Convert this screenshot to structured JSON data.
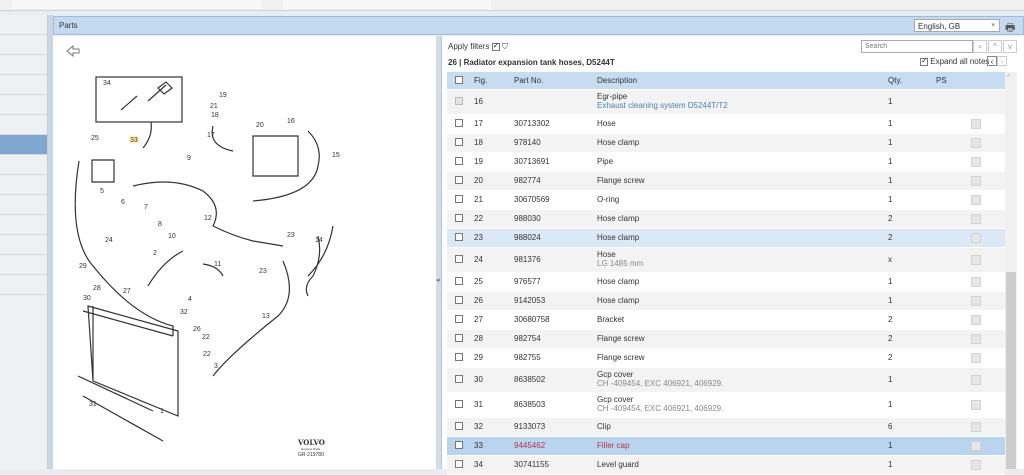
{
  "header": {
    "title": "Parts",
    "language": "English, GB"
  },
  "filters": {
    "apply_label": "Apply filters",
    "apply_checked": true
  },
  "search": {
    "placeholder": "Search"
  },
  "section": {
    "title": "26  |  Radiator expansion tank hoses, D5244T"
  },
  "expand_notes": {
    "label": "Expand all notes",
    "checked": true
  },
  "table": {
    "columns": {
      "fig": "Fig.",
      "part_no": "Part No.",
      "description": "Description",
      "qty": "Qty.",
      "ps": "PS"
    },
    "rows": [
      {
        "fig": "16",
        "part_no": "",
        "description": "Egr-pipe",
        "note": "Exhaust cleaning system D5244T/T2",
        "note_link": true,
        "qty": "1",
        "disabled": true
      },
      {
        "fig": "17",
        "part_no": "30713302",
        "description": "Hose",
        "note": "",
        "qty": "1"
      },
      {
        "fig": "18",
        "part_no": "978140",
        "description": "Hose clamp",
        "note": "",
        "qty": "1"
      },
      {
        "fig": "19",
        "part_no": "30713691",
        "description": "Pipe",
        "note": "",
        "qty": "1"
      },
      {
        "fig": "20",
        "part_no": "982774",
        "description": "Flange screw",
        "note": "",
        "qty": "1"
      },
      {
        "fig": "21",
        "part_no": "30670569",
        "description": "O-ring",
        "note": "",
        "qty": "1"
      },
      {
        "fig": "22",
        "part_no": "988030",
        "description": "Hose clamp",
        "note": "",
        "qty": "2"
      },
      {
        "fig": "23",
        "part_no": "988024",
        "description": "Hose clamp",
        "note": "",
        "qty": "2",
        "state": "hover"
      },
      {
        "fig": "24",
        "part_no": "981376",
        "description": "Hose",
        "note": "LG 1485 mm",
        "qty": "x"
      },
      {
        "fig": "25",
        "part_no": "976577",
        "description": "Hose clamp",
        "note": "",
        "qty": "1"
      },
      {
        "fig": "26",
        "part_no": "9142053",
        "description": "Hose clamp",
        "note": "",
        "qty": "1"
      },
      {
        "fig": "27",
        "part_no": "30680758",
        "description": "Bracket",
        "note": "",
        "qty": "2"
      },
      {
        "fig": "28",
        "part_no": "982754",
        "description": "Flange screw",
        "note": "",
        "qty": "2"
      },
      {
        "fig": "29",
        "part_no": "982755",
        "description": "Flange screw",
        "note": "",
        "qty": "2"
      },
      {
        "fig": "30",
        "part_no": "8638502",
        "description": "Gcp cover",
        "note": "CH -409454, EXC 406921, 406929.",
        "qty": "1"
      },
      {
        "fig": "31",
        "part_no": "8638503",
        "description": "Gcp cover",
        "note": "CH -409454, EXC 406921, 406929.",
        "qty": "1"
      },
      {
        "fig": "32",
        "part_no": "9133073",
        "description": "Clip",
        "note": "",
        "qty": "6"
      },
      {
        "fig": "33",
        "part_no": "9445462",
        "description": "Filler cap",
        "note": "",
        "qty": "1",
        "state": "selected"
      },
      {
        "fig": "34",
        "part_no": "30741155",
        "description": "Level guard",
        "note": "",
        "qty": "1"
      }
    ]
  },
  "diagram": {
    "callouts": [
      "34",
      "19",
      "21",
      "18",
      "20",
      "17",
      "16",
      "15",
      "25",
      "33",
      "9",
      "5",
      "6",
      "7",
      "8",
      "10",
      "12",
      "23",
      "14",
      "24",
      "2",
      "11",
      "23",
      "29",
      "28",
      "27",
      "30",
      "4",
      "13",
      "22",
      "32",
      "26",
      "3",
      "22",
      "31",
      "1"
    ],
    "logo": "VOLVO",
    "logo_sub": "Genuine Parts",
    "ref": "GR-219780"
  },
  "colors": {
    "header": "#c3daf0",
    "selected_row": "#b9d4ef",
    "hover_row": "#dbe8f6",
    "selected_text": "#c0304a",
    "note_link": "#4a7fb0"
  }
}
